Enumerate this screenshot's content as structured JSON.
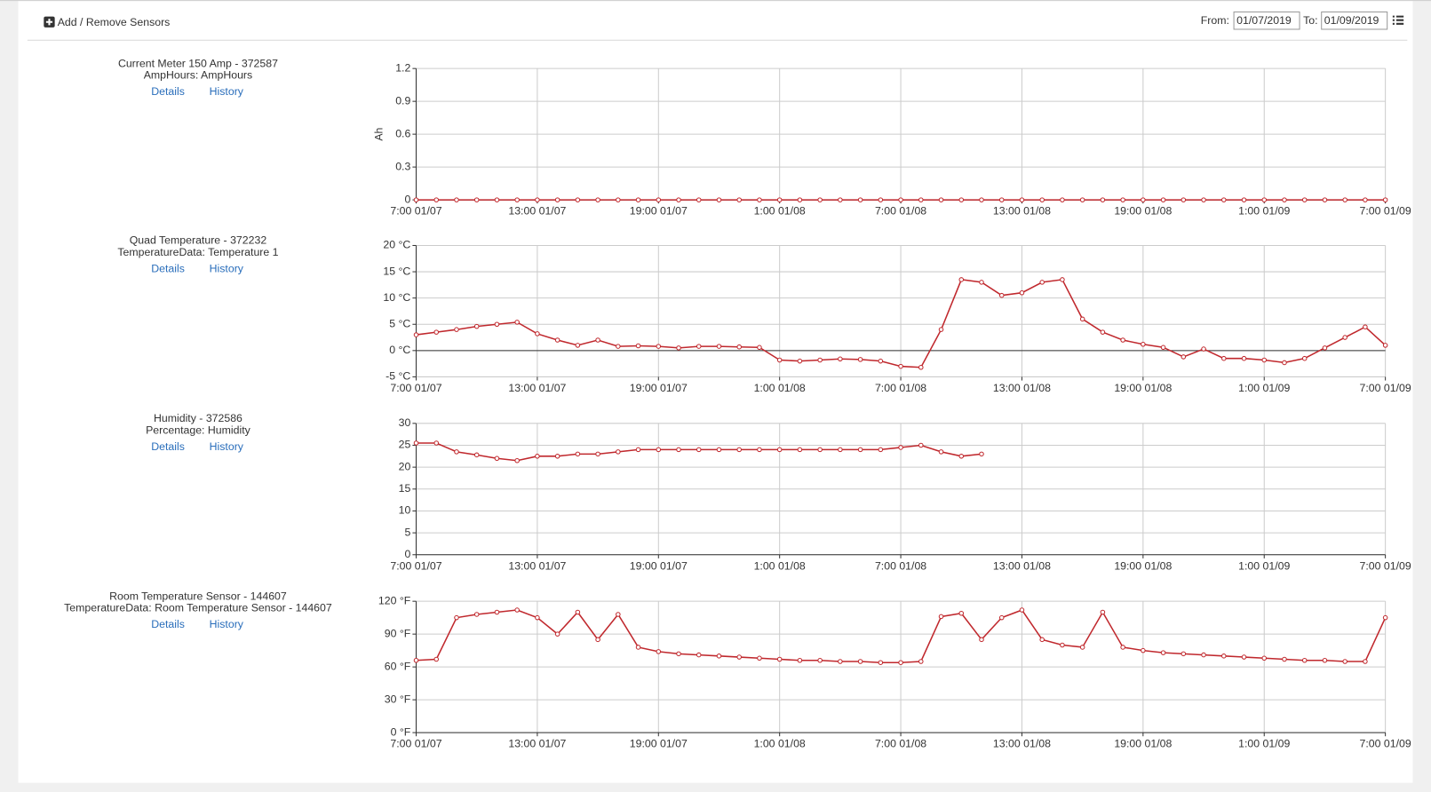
{
  "header": {
    "add_remove": "Add / Remove Sensors",
    "from_label": "From:",
    "from_date": "01/07/2019",
    "to_label": "To:",
    "to_date": "01/09/2019"
  },
  "chart_data": [
    {
      "type": "line",
      "title": "Current Meter 150 Amp - 372587",
      "subtitle": "AmpHours: AmpHours",
      "links": [
        "Details",
        "History"
      ],
      "ylabel": "Ah",
      "x": [
        "7:00 01/07",
        "8:00 01/07",
        "9:00 01/07",
        "10:00 01/07",
        "11:00 01/07",
        "12:00 01/07",
        "13:00 01/07",
        "14:00 01/07",
        "15:00 01/07",
        "16:00 01/07",
        "17:00 01/07",
        "18:00 01/07",
        "19:00 01/07",
        "20:00 01/07",
        "21:00 01/07",
        "22:00 01/07",
        "23:00 01/07",
        "0:00 01/08",
        "1:00 01/08",
        "2:00 01/08",
        "3:00 01/08",
        "4:00 01/08",
        "5:00 01/08",
        "6:00 01/08",
        "7:00 01/08",
        "8:00 01/08",
        "9:00 01/08",
        "10:00 01/08",
        "11:00 01/08",
        "12:00 01/08",
        "13:00 01/08",
        "14:00 01/08",
        "15:00 01/08",
        "16:00 01/08",
        "17:00 01/08",
        "18:00 01/08",
        "19:00 01/08",
        "20:00 01/08",
        "21:00 01/08",
        "22:00 01/08",
        "23:00 01/08",
        "0:00 01/09",
        "1:00 01/09",
        "2:00 01/09",
        "3:00 01/09",
        "4:00 01/09",
        "5:00 01/09",
        "6:00 01/09",
        "7:00 01/09"
      ],
      "xticks": [
        "7:00 01/07",
        "13:00 01/07",
        "19:00 01/07",
        "1:00 01/08",
        "7:00 01/08",
        "13:00 01/08",
        "19:00 01/08",
        "1:00 01/09",
        "7:00 01/09"
      ],
      "series": [
        {
          "color": "#c0282d",
          "values": [
            0,
            0,
            0,
            0,
            0,
            0,
            0,
            0,
            0,
            0,
            0,
            0,
            0,
            0,
            0,
            0,
            0,
            0,
            0,
            0,
            0,
            0,
            0,
            0,
            0,
            0,
            0,
            0,
            0,
            0,
            0,
            0,
            0,
            0,
            0,
            0,
            0,
            0,
            0,
            0,
            0,
            0,
            0,
            0,
            0,
            0,
            0,
            0,
            0
          ]
        }
      ],
      "ylim": [
        0,
        1.2
      ],
      "yticks": [
        0,
        0.3,
        0.6,
        0.9,
        1.2
      ],
      "grid": true
    },
    {
      "type": "line",
      "title": "Quad Temperature - 372232",
      "subtitle": "TemperatureData: Temperature 1",
      "links": [
        "Details",
        "History"
      ],
      "x": [
        "7:00 01/07",
        "8:00 01/07",
        "9:00 01/07",
        "10:00 01/07",
        "11:00 01/07",
        "12:00 01/07",
        "13:00 01/07",
        "14:00 01/07",
        "15:00 01/07",
        "16:00 01/07",
        "17:00 01/07",
        "18:00 01/07",
        "19:00 01/07",
        "20:00 01/07",
        "21:00 01/07",
        "22:00 01/07",
        "23:00 01/07",
        "0:00 01/08",
        "1:00 01/08",
        "2:00 01/08",
        "3:00 01/08",
        "4:00 01/08",
        "5:00 01/08",
        "6:00 01/08",
        "7:00 01/08",
        "8:00 01/08",
        "9:00 01/08",
        "10:00 01/08",
        "11:00 01/08",
        "12:00 01/08",
        "13:00 01/08",
        "14:00 01/08",
        "15:00 01/08",
        "16:00 01/08",
        "17:00 01/08",
        "18:00 01/08",
        "19:00 01/08",
        "20:00 01/08",
        "21:00 01/08",
        "22:00 01/08",
        "23:00 01/08",
        "0:00 01/09",
        "1:00 01/09",
        "2:00 01/09",
        "3:00 01/09",
        "4:00 01/09",
        "5:00 01/09",
        "6:00 01/09",
        "7:00 01/09"
      ],
      "xticks": [
        "7:00 01/07",
        "13:00 01/07",
        "19:00 01/07",
        "1:00 01/08",
        "7:00 01/08",
        "13:00 01/08",
        "19:00 01/08",
        "1:00 01/09",
        "7:00 01/09"
      ],
      "series": [
        {
          "color": "#c0282d",
          "values": [
            3.0,
            3.5,
            4.0,
            4.6,
            5.0,
            5.4,
            3.2,
            2.0,
            1.0,
            2.0,
            0.8,
            0.9,
            0.8,
            0.5,
            0.8,
            0.8,
            0.7,
            0.6,
            -1.8,
            -2.0,
            -1.8,
            -1.6,
            -1.7,
            -2.0,
            -3.0,
            -3.2,
            4.0,
            13.5,
            13,
            10.5,
            11,
            13,
            13.5,
            6,
            3.5,
            2.0,
            1.2,
            0.6,
            -1.2,
            0.3,
            -1.5,
            -1.5,
            -1.8,
            -2.3,
            -1.5,
            0.5,
            2.5,
            4.5,
            1.0
          ]
        }
      ],
      "ylim": [
        -5,
        20
      ],
      "yticks": [
        {
          "value": -5,
          "label": "-5 °C"
        },
        {
          "value": 0,
          "label": "0 °C"
        },
        {
          "value": 5,
          "label": "5 °C"
        },
        {
          "value": 10,
          "label": "10 °C"
        },
        {
          "value": 15,
          "label": "15 °C"
        },
        {
          "value": 20,
          "label": "20 °C"
        }
      ],
      "grid": true
    },
    {
      "type": "line",
      "title": "Humidity - 372586",
      "subtitle": "Percentage: Humidity",
      "links": [
        "Details",
        "History"
      ],
      "x": [
        "7:00 01/07",
        "8:00 01/07",
        "9:00 01/07",
        "10:00 01/07",
        "11:00 01/07",
        "12:00 01/07",
        "13:00 01/07",
        "14:00 01/07",
        "15:00 01/07",
        "16:00 01/07",
        "17:00 01/07",
        "18:00 01/07",
        "19:00 01/07",
        "20:00 01/07",
        "21:00 01/07",
        "22:00 01/07",
        "23:00 01/07",
        "0:00 01/08",
        "1:00 01/08",
        "2:00 01/08",
        "3:00 01/08",
        "4:00 01/08",
        "5:00 01/08",
        "6:00 01/08",
        "7:00 01/08",
        "8:00 01/08",
        "9:00 01/08",
        "10:00 01/08",
        "11:00 01/08",
        "12:00 01/08",
        "13:00 01/08",
        "14:00 01/08",
        "15:00 01/08",
        "16:00 01/08",
        "17:00 01/08",
        "18:00 01/08",
        "19:00 01/08",
        "20:00 01/08",
        "21:00 01/08",
        "22:00 01/08",
        "23:00 01/08",
        "0:00 01/09",
        "1:00 01/09",
        "2:00 01/09",
        "3:00 01/09",
        "4:00 01/09",
        "5:00 01/09",
        "6:00 01/09",
        "7:00 01/09"
      ],
      "xticks": [
        "7:00 01/07",
        "13:00 01/07",
        "19:00 01/07",
        "1:00 01/08",
        "7:00 01/08",
        "13:00 01/08",
        "19:00 01/08",
        "1:00 01/09",
        "7:00 01/09"
      ],
      "series": [
        {
          "color": "#c0282d",
          "values": [
            25.5,
            25.5,
            23.5,
            22.8,
            22.0,
            21.5,
            22.5,
            22.5,
            23,
            23,
            23.5,
            24,
            24,
            24,
            24,
            24,
            24,
            24,
            24,
            24,
            24,
            24,
            24,
            24,
            24.5,
            25,
            23.5,
            22.5,
            23,
            null,
            null,
            null,
            null,
            null,
            null,
            null,
            null,
            null,
            null,
            null,
            null,
            null,
            null,
            null,
            null,
            null,
            null,
            null,
            null
          ]
        }
      ],
      "ylim": [
        0,
        30
      ],
      "yticks": [
        0,
        5,
        10,
        15,
        20,
        25,
        30
      ],
      "grid": true
    },
    {
      "type": "line",
      "title": "Room Temperature Sensor - 144607",
      "subtitle": "TemperatureData: Room Temperature Sensor - 144607",
      "links": [
        "Details",
        "History"
      ],
      "x": [
        "7:00 01/07",
        "8:00 01/07",
        "9:00 01/07",
        "10:00 01/07",
        "11:00 01/07",
        "12:00 01/07",
        "13:00 01/07",
        "14:00 01/07",
        "15:00 01/07",
        "16:00 01/07",
        "17:00 01/07",
        "18:00 01/07",
        "19:00 01/07",
        "20:00 01/07",
        "21:00 01/07",
        "22:00 01/07",
        "23:00 01/07",
        "0:00 01/08",
        "1:00 01/08",
        "2:00 01/08",
        "3:00 01/08",
        "4:00 01/08",
        "5:00 01/08",
        "6:00 01/08",
        "7:00 01/08",
        "8:00 01/08",
        "9:00 01/08",
        "10:00 01/08",
        "11:00 01/08",
        "12:00 01/08",
        "13:00 01/08",
        "14:00 01/08",
        "15:00 01/08",
        "16:00 01/08",
        "17:00 01/08",
        "18:00 01/08",
        "19:00 01/08",
        "20:00 01/08",
        "21:00 01/08",
        "22:00 01/08",
        "23:00 01/08",
        "0:00 01/09",
        "1:00 01/09",
        "2:00 01/09",
        "3:00 01/09",
        "4:00 01/09",
        "5:00 01/09",
        "6:00 01/09",
        "7:00 01/09"
      ],
      "xticks": [
        "7:00 01/07",
        "13:00 01/07",
        "19:00 01/07",
        "1:00 01/08",
        "7:00 01/08",
        "13:00 01/08",
        "19:00 01/08",
        "1:00 01/09",
        "7:00 01/09"
      ],
      "series": [
        {
          "color": "#c0282d",
          "values": [
            66,
            67,
            105,
            108,
            110,
            112,
            105,
            90,
            110,
            85,
            108,
            78,
            74,
            72,
            71,
            70,
            69,
            68,
            67,
            66,
            66,
            65,
            65,
            64,
            64,
            65,
            106,
            109,
            85,
            105,
            112,
            85,
            80,
            78,
            110,
            78,
            75,
            73,
            72,
            71,
            70,
            69,
            68,
            67,
            66,
            66,
            65,
            65,
            105
          ]
        }
      ],
      "ylim": [
        0,
        120
      ],
      "yticks": [
        {
          "value": 0,
          "label": "0 °F"
        },
        {
          "value": 30,
          "label": "30 °F"
        },
        {
          "value": 60,
          "label": "60 °F"
        },
        {
          "value": 90,
          "label": "90 °F"
        },
        {
          "value": 120,
          "label": "120 °F"
        }
      ],
      "grid": true
    }
  ]
}
